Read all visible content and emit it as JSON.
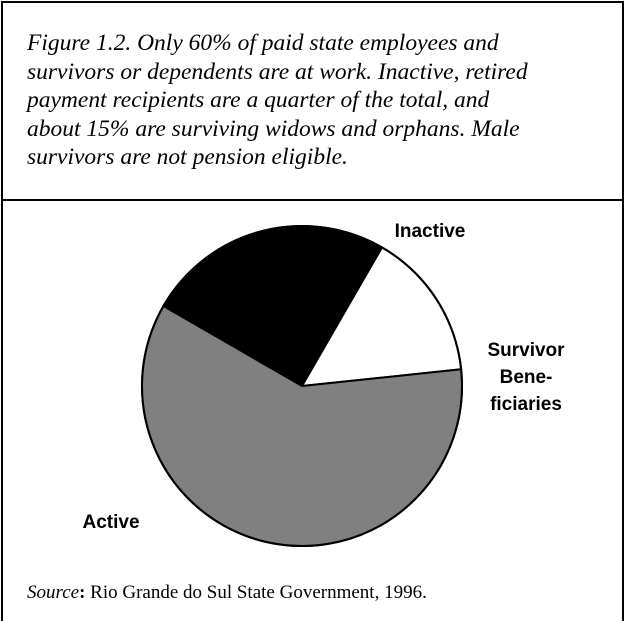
{
  "caption": {
    "lines": [
      "Figure 1.2.  Only 60% of paid state employees and",
      "survivors or dependents are at work.  Inactive, retired",
      "payment recipients are a quarter of the total, and",
      "about 15% are surviving widows and orphans.  Male",
      "survivors are not pension eligible."
    ]
  },
  "source": {
    "label": "Source",
    "colon": ":",
    "text": "  Rio Grande do Sul State Government, 1996."
  },
  "chart_data": {
    "type": "pie",
    "title": "",
    "slices": [
      {
        "label_lines": [
          "Inactive"
        ],
        "value": 25,
        "color": "#000000"
      },
      {
        "label_lines": [
          "Survivor",
          "Bene-",
          "ficiaries"
        ],
        "value": 15,
        "color": "#ffffff"
      },
      {
        "label_lines": [
          "Active"
        ],
        "value": 60,
        "color": "#808080"
      }
    ],
    "legend": "none"
  }
}
